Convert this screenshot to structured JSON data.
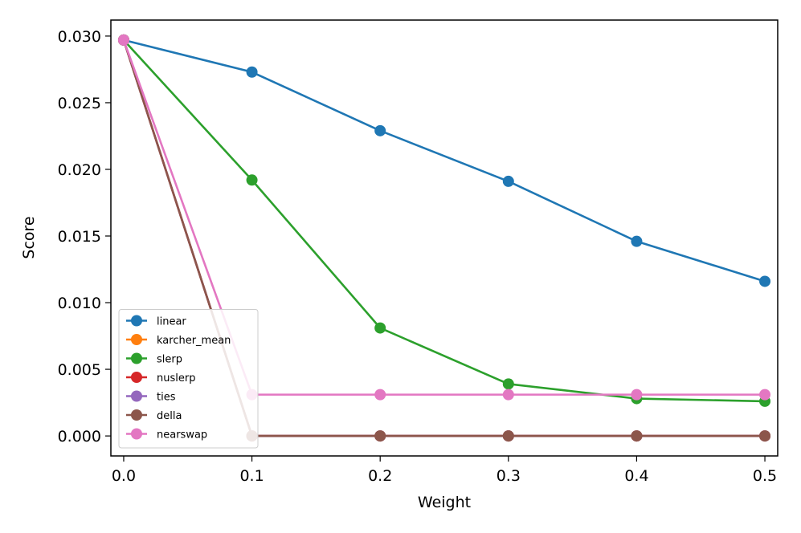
{
  "chart_data": {
    "type": "line",
    "title": "",
    "xlabel": "Weight",
    "ylabel": "Score",
    "x": [
      0.0,
      0.1,
      0.2,
      0.3,
      0.4,
      0.5
    ],
    "xlim": [
      -0.01,
      0.51
    ],
    "ylim": [
      -0.0015,
      0.0312
    ],
    "xticks": [
      0.0,
      0.1,
      0.2,
      0.3,
      0.4,
      0.5
    ],
    "xtick_labels": [
      "0.0",
      "0.1",
      "0.2",
      "0.3",
      "0.4",
      "0.5"
    ],
    "yticks": [
      0.0,
      0.005,
      0.01,
      0.015,
      0.02,
      0.025,
      0.03
    ],
    "ytick_labels": [
      "0.000",
      "0.005",
      "0.010",
      "0.015",
      "0.020",
      "0.025",
      "0.030"
    ],
    "grid": false,
    "legend_position": "lower-left",
    "series": [
      {
        "name": "linear",
        "color": "#1f77b4",
        "values": [
          0.0297,
          0.0273,
          0.0229,
          0.0191,
          0.0146,
          0.0116
        ]
      },
      {
        "name": "karcher_mean",
        "color": "#ff7f0e",
        "values": [
          0.0297,
          0.0,
          0.0,
          0.0,
          0.0,
          0.0
        ]
      },
      {
        "name": "slerp",
        "color": "#2ca02c",
        "values": [
          0.0297,
          0.0192,
          0.0081,
          0.0039,
          0.0028,
          0.0026
        ]
      },
      {
        "name": "nuslerp",
        "color": "#d62728",
        "values": [
          0.0297,
          0.0,
          0.0,
          0.0,
          0.0,
          0.0
        ]
      },
      {
        "name": "ties",
        "color": "#9467bd",
        "values": [
          0.0297,
          0.0,
          0.0,
          0.0,
          0.0,
          0.0
        ]
      },
      {
        "name": "della",
        "color": "#8c564b",
        "values": [
          0.0297,
          0.0,
          0.0,
          0.0,
          0.0,
          0.0
        ]
      },
      {
        "name": "nearswap",
        "color": "#e377c2",
        "values": [
          0.0297,
          0.0031,
          0.0031,
          0.0031,
          0.0031,
          0.0031
        ]
      }
    ]
  }
}
